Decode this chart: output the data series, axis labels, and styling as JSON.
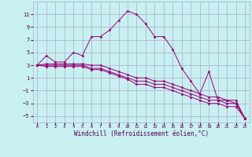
{
  "xlabel": "Windchill (Refroidissement éolien,°C)",
  "background_color": "#c8f0f0",
  "line_color": "#990077",
  "grid_color": "#aaaacc",
  "xlim": [
    -0.5,
    23.5
  ],
  "ylim": [
    -6,
    13
  ],
  "xticks": [
    0,
    1,
    2,
    3,
    4,
    5,
    6,
    7,
    8,
    9,
    10,
    11,
    12,
    13,
    14,
    15,
    16,
    17,
    18,
    19,
    20,
    21,
    22,
    23
  ],
  "yticks": [
    -5,
    -3,
    -1,
    1,
    3,
    5,
    7,
    9,
    11
  ],
  "series": [
    {
      "x": [
        0,
        1,
        2,
        3,
        4,
        5,
        6,
        7,
        8,
        9,
        10,
        11,
        12,
        13,
        14,
        15,
        16,
        17,
        18,
        19,
        20,
        21,
        22,
        23
      ],
      "y": [
        3.0,
        4.5,
        3.5,
        3.5,
        5.0,
        4.5,
        7.5,
        7.5,
        8.5,
        10.0,
        11.5,
        11.0,
        9.5,
        7.5,
        7.5,
        5.5,
        2.5,
        0.5,
        -1.5,
        2.0,
        -2.5,
        -2.5,
        -3.0,
        -5.4
      ]
    },
    {
      "x": [
        0,
        1,
        2,
        3,
        4,
        5,
        6,
        7,
        8,
        9,
        10,
        11,
        12,
        13,
        14,
        15,
        16,
        17,
        18,
        19,
        20,
        21,
        22,
        23
      ],
      "y": [
        3.0,
        3.2,
        3.2,
        3.2,
        3.2,
        3.2,
        3.0,
        3.0,
        2.5,
        2.0,
        1.5,
        1.0,
        1.0,
        0.5,
        0.5,
        0.0,
        -0.5,
        -1.0,
        -1.5,
        -2.0,
        -2.0,
        -2.5,
        -2.5,
        -5.4
      ]
    },
    {
      "x": [
        0,
        1,
        2,
        3,
        4,
        5,
        6,
        7,
        8,
        9,
        10,
        11,
        12,
        13,
        14,
        15,
        16,
        17,
        18,
        19,
        20,
        21,
        22,
        23
      ],
      "y": [
        3.0,
        3.0,
        3.0,
        3.0,
        3.0,
        3.0,
        2.5,
        2.5,
        2.0,
        1.5,
        1.0,
        0.5,
        0.5,
        0.0,
        0.0,
        -0.5,
        -1.0,
        -1.5,
        -2.0,
        -2.5,
        -2.5,
        -3.0,
        -3.0,
        -5.4
      ]
    },
    {
      "x": [
        0,
        1,
        2,
        3,
        4,
        5,
        6,
        7,
        8,
        9,
        10,
        11,
        12,
        13,
        14,
        15,
        16,
        17,
        18,
        19,
        20,
        21,
        22,
        23
      ],
      "y": [
        3.0,
        2.8,
        2.8,
        2.8,
        2.8,
        2.8,
        2.3,
        2.3,
        1.8,
        1.3,
        0.8,
        0.0,
        0.0,
        -0.5,
        -0.5,
        -1.0,
        -1.5,
        -2.0,
        -2.5,
        -3.0,
        -3.0,
        -3.5,
        -3.5,
        -5.4
      ]
    }
  ]
}
